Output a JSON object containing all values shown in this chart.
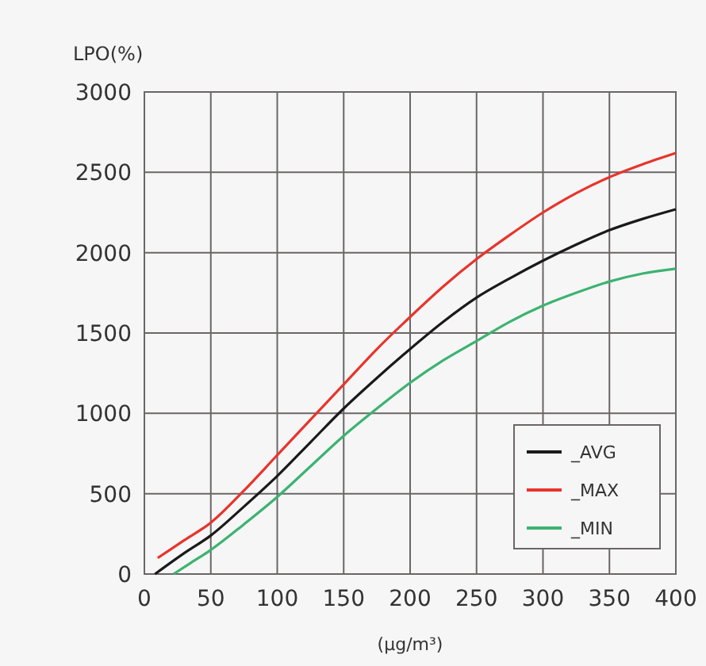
{
  "chart_data": {
    "type": "line",
    "xlabel": "(μg/m³)",
    "ylabel": "LPO(%)",
    "xlim": [
      0,
      400
    ],
    "xticks": [
      0,
      50,
      100,
      150,
      200,
      250,
      300,
      350,
      400
    ],
    "ylim": [
      0,
      3000
    ],
    "yticks": [
      0,
      500,
      1000,
      1500,
      2000,
      2500,
      3000
    ],
    "grid": true,
    "legend": "bottom right",
    "line_style": "solid",
    "marker": "none",
    "series": [
      {
        "name": "_AVG",
        "color": "#1a1a1a",
        "x": [
          8,
          30,
          50,
          75,
          100,
          125,
          150,
          175,
          200,
          225,
          250,
          275,
          300,
          325,
          350,
          375,
          400
        ],
        "values": [
          0,
          130,
          240,
          420,
          610,
          820,
          1030,
          1220,
          1400,
          1570,
          1720,
          1840,
          1950,
          2050,
          2140,
          2210,
          2270
        ]
      },
      {
        "name": "_MAX",
        "color": "#e8342c",
        "x": [
          10,
          30,
          50,
          75,
          100,
          125,
          150,
          175,
          200,
          225,
          250,
          275,
          300,
          325,
          350,
          375,
          400
        ],
        "values": [
          100,
          210,
          320,
          520,
          740,
          960,
          1180,
          1400,
          1600,
          1790,
          1960,
          2110,
          2250,
          2370,
          2470,
          2550,
          2620
        ]
      },
      {
        "name": "_MIN",
        "color": "#3cb371",
        "x": [
          22,
          35,
          50,
          75,
          100,
          125,
          150,
          175,
          200,
          225,
          250,
          275,
          300,
          325,
          350,
          375,
          400
        ],
        "values": [
          0,
          70,
          150,
          310,
          480,
          670,
          860,
          1030,
          1190,
          1330,
          1450,
          1570,
          1670,
          1750,
          1820,
          1870,
          1900
        ]
      }
    ]
  }
}
